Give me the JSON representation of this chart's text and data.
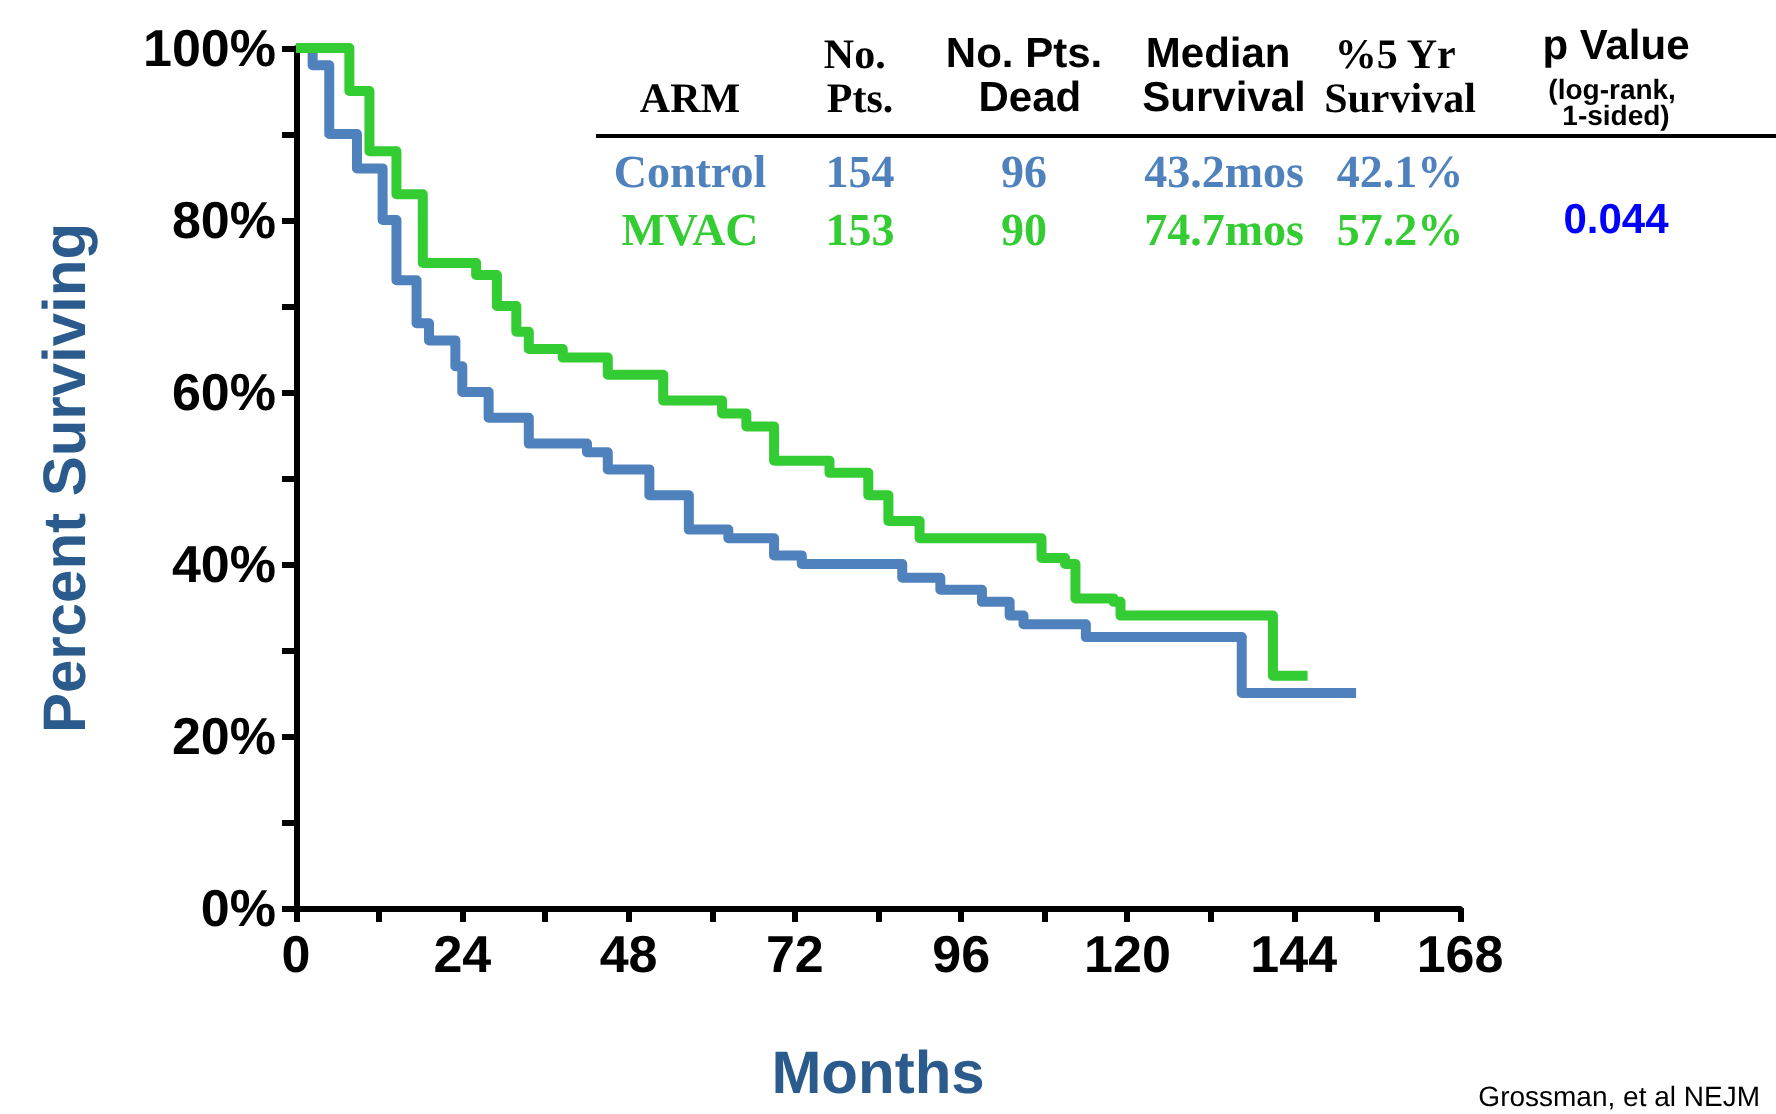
{
  "chart_data": {
    "type": "step",
    "xlabel": "Months",
    "ylabel": "Percent Surviving",
    "xlim": [
      0,
      168
    ],
    "xticks": [
      0,
      {
        "value": 12,
        "label": null
      },
      24,
      {
        "value": 36,
        "label": null
      },
      48,
      {
        "value": 60,
        "label": null
      },
      72,
      {
        "value": 84,
        "label": null
      },
      96,
      {
        "value": 108,
        "label": null
      },
      120,
      {
        "value": 132,
        "label": null
      },
      144,
      {
        "value": 156,
        "label": null
      },
      168
    ],
    "ylim": [
      0,
      100
    ],
    "yticks": [
      {
        "value": 0,
        "label": "0%"
      },
      {
        "value": 10,
        "label": null
      },
      {
        "value": 20,
        "label": "20%"
      },
      {
        "value": 30,
        "label": null
      },
      {
        "value": 40,
        "label": "40%"
      },
      {
        "value": 50,
        "label": null
      },
      {
        "value": 60,
        "label": "60%"
      },
      {
        "value": 70,
        "label": null
      },
      {
        "value": 80,
        "label": "80%"
      },
      {
        "value": 90,
        "label": null
      },
      {
        "value": 100,
        "label": "100%"
      }
    ],
    "series": [
      {
        "name": "Control",
        "color": "#4f81bd",
        "x": [
          0,
          2.4,
          4.8,
          8.8,
          12.5,
          14.5,
          17.4,
          19.2,
          23,
          24,
          27.8,
          33.6,
          42,
          45,
          51,
          56.7,
          62.4,
          69,
          73,
          87.5,
          93,
          99,
          103,
          105,
          114,
          136.5,
          153
        ],
        "values": [
          100,
          98,
          90,
          86,
          80,
          73,
          68,
          66,
          63,
          60,
          57,
          54,
          53,
          51,
          48,
          44,
          43,
          41,
          40,
          38.4,
          37,
          35.6,
          34,
          33,
          31.5,
          25,
          25
        ]
      },
      {
        "name": "MVAC",
        "color": "#33cc33",
        "x": [
          0,
          4.5,
          7.7,
          10.6,
          14.5,
          18.3,
          26,
          29,
          31.8,
          33.6,
          38.5,
          45,
          53,
          61.5,
          65,
          69,
          77,
          82.6,
          85.5,
          90,
          107.6,
          111,
          112.5,
          118,
          119,
          141,
          146
        ],
        "values": [
          100,
          100,
          95,
          88,
          83,
          75,
          73.6,
          70,
          67,
          65,
          64,
          62,
          59,
          57.5,
          56,
          52,
          50.6,
          48,
          45,
          43,
          40.7,
          40,
          36,
          35.6,
          34,
          27,
          27
        ]
      }
    ],
    "annotations": [
      "ARM",
      "No. Pts.",
      "No. Pts. Dead",
      "Median Survival",
      "%5 Yr Survival",
      "p Value",
      "(log-rank, 1-sided)",
      "154",
      "96",
      "43.2mos",
      "42.1%",
      "153",
      "90",
      "74.7mos",
      "57.2%",
      "0.044",
      "Grossman, et al NEJM"
    ]
  }
}
